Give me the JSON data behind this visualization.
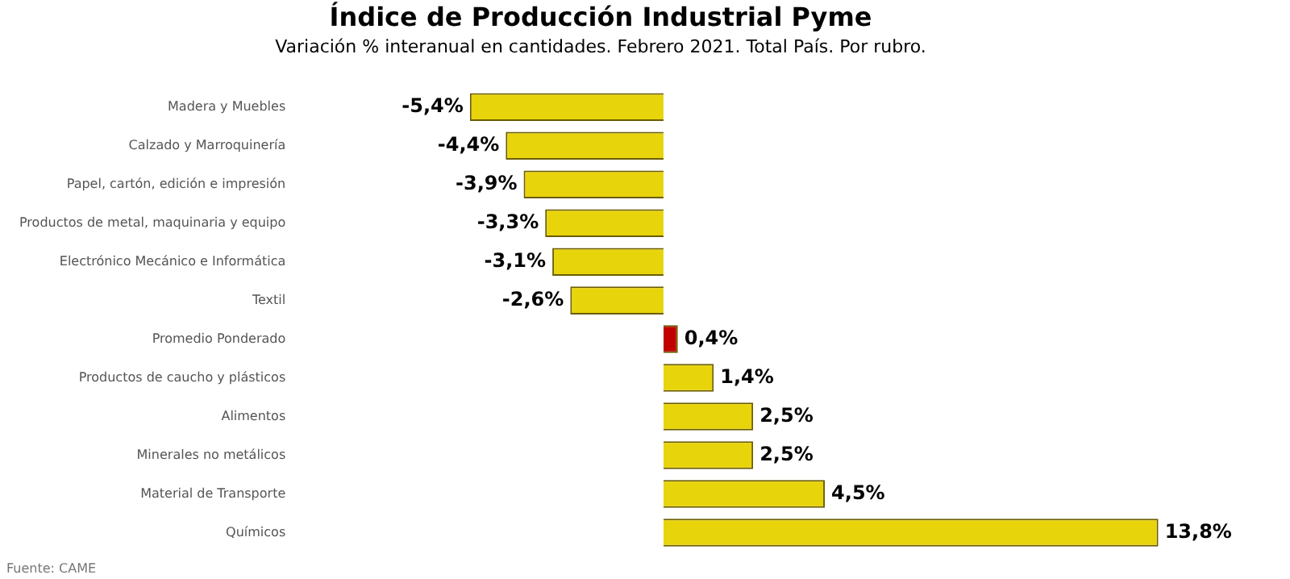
{
  "chart_data": {
    "type": "bar",
    "orientation": "horizontal",
    "title": "Índice de Producción Industrial Pyme",
    "subtitle": "Variación % interanual en cantidades. Febrero 2021. Total País. Por rubro.",
    "categories": [
      "Madera y Muebles",
      "Calzado y Marroquinería",
      "Papel, cartón, edición e impresión",
      "Productos de metal, maquinaria y equipo",
      "Electrónico Mecánico e Informática",
      "Textil",
      "Promedio Ponderado",
      "Productos de caucho y plásticos",
      "Alimentos",
      "Minerales no metálicos",
      "Material de Transporte",
      "Químicos"
    ],
    "values": [
      -5.4,
      -4.4,
      -3.9,
      -3.3,
      -3.1,
      -2.6,
      0.4,
      1.4,
      2.5,
      2.5,
      4.5,
      13.8
    ],
    "value_labels": [
      "-5,4%",
      "-4,4%",
      "-3,9%",
      "-3,3%",
      "-3,1%",
      "-2,6%",
      "0,4%",
      "1,4%",
      "2,5%",
      "2,5%",
      "4,5%",
      "13,8%"
    ],
    "colors": [
      "#e8d40a",
      "#e8d40a",
      "#e8d40a",
      "#e8d40a",
      "#e8d40a",
      "#e8d40a",
      "#c00000",
      "#e8d40a",
      "#e8d40a",
      "#e8d40a",
      "#e8d40a",
      "#e8d40a"
    ],
    "annotations": [
      "Fuente: CAME"
    ],
    "grid": false,
    "legend": false
  }
}
